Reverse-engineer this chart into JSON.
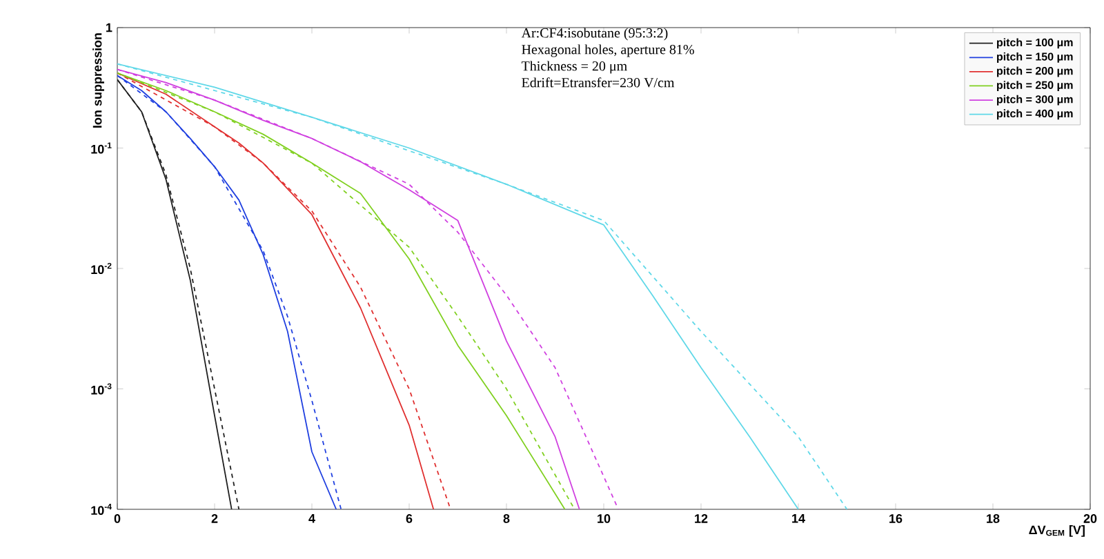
{
  "chart_data": {
    "type": "line",
    "xlabel": "ΔV$_{GEM}$ [V]",
    "ylabel": "Ion suppression",
    "log": "y",
    "xlim": [
      0,
      20
    ],
    "ylim": [
      0.0001,
      1
    ],
    "xticks": [
      0,
      2,
      4,
      6,
      8,
      10,
      12,
      14,
      16,
      18,
      20
    ],
    "yticks": [
      {
        "value": 1,
        "label": "1"
      },
      {
        "value": 0.1,
        "label": "10$^{-1}$"
      },
      {
        "value": 0.01,
        "label": "10$^{-2}$"
      },
      {
        "value": 0.001,
        "label": "10$^{-3}$"
      },
      {
        "value": 0.0001,
        "label": "10$^{-4}$"
      }
    ],
    "legend": "top right",
    "annotations": [
      "Ar:CF4:isobutane (95:3:2)",
      "Hexagonal holes, aperture 81%",
      "Thickness = 20 μm",
      "Edrift=Etransfer=230 V/cm"
    ],
    "series": [
      {
        "name": "pitch = 100 μm",
        "color": "#202020",
        "line_style": "solid",
        "x": [
          0,
          0.5,
          1,
          1.5,
          2,
          2.35
        ],
        "values": [
          0.37,
          0.2,
          0.055,
          0.008,
          0.0006,
          0.0001
        ]
      },
      {
        "name": "pitch = 150 μm",
        "color": "#2040e0",
        "line_style": "solid",
        "x": [
          0,
          0.5,
          1,
          1.5,
          2,
          2.5,
          3,
          3.5,
          4,
          4.5
        ],
        "values": [
          0.4,
          0.3,
          0.2,
          0.12,
          0.07,
          0.037,
          0.013,
          0.003,
          0.0003,
          0.0001
        ]
      },
      {
        "name": "pitch = 200 μm",
        "color": "#e03030",
        "line_style": "solid",
        "x": [
          0,
          1,
          2,
          2.5,
          3,
          4,
          5,
          6,
          6.5
        ],
        "values": [
          0.42,
          0.28,
          0.15,
          0.11,
          0.075,
          0.028,
          0.0047,
          0.0005,
          0.0001
        ]
      },
      {
        "name": "pitch = 250 μm",
        "color": "#80d020",
        "line_style": "solid",
        "x": [
          0,
          1,
          2,
          3,
          4,
          5,
          6,
          7,
          8,
          9.2
        ],
        "values": [
          0.42,
          0.3,
          0.2,
          0.13,
          0.075,
          0.042,
          0.012,
          0.0023,
          0.0006,
          0.0001
        ]
      },
      {
        "name": "pitch = 300 μm",
        "color": "#d040e0",
        "line_style": "solid",
        "x": [
          0,
          1,
          2,
          3,
          4,
          5,
          6,
          7,
          8,
          9,
          9.5
        ],
        "values": [
          0.45,
          0.35,
          0.25,
          0.17,
          0.12,
          0.077,
          0.045,
          0.025,
          0.0025,
          0.0004,
          0.0001
        ]
      },
      {
        "name": "pitch = 400 μm",
        "color": "#60d8e8",
        "line_style": "solid",
        "x": [
          0,
          2,
          4,
          6,
          8,
          10,
          11,
          12,
          13,
          14
        ],
        "values": [
          0.5,
          0.32,
          0.18,
          0.1,
          0.05,
          0.023,
          0.006,
          0.0015,
          0.0004,
          0.0001
        ]
      },
      {
        "color": "#202020",
        "line_style": "dashed",
        "x": [
          0,
          0.5,
          1,
          1.5,
          2,
          2.5
        ],
        "values": [
          0.37,
          0.2,
          0.06,
          0.01,
          0.001,
          0.0001
        ]
      },
      {
        "color": "#2040e0",
        "line_style": "dashed",
        "x": [
          0,
          1,
          2,
          3,
          3.5,
          4,
          4.6
        ],
        "values": [
          0.4,
          0.2,
          0.07,
          0.014,
          0.004,
          0.0008,
          0.0001
        ]
      },
      {
        "color": "#e03030",
        "line_style": "dashed",
        "x": [
          0,
          2,
          3,
          4,
          5,
          6,
          6.85
        ],
        "values": [
          0.42,
          0.15,
          0.075,
          0.03,
          0.007,
          0.001,
          0.0001
        ]
      },
      {
        "color": "#80d020",
        "line_style": "dashed",
        "x": [
          0,
          2,
          4,
          6,
          7,
          8,
          9.4
        ],
        "values": [
          0.42,
          0.2,
          0.075,
          0.015,
          0.004,
          0.001,
          0.0001
        ]
      },
      {
        "color": "#d040e0",
        "line_style": "dashed",
        "x": [
          0,
          2,
          4,
          6,
          7,
          8,
          9,
          10.3
        ],
        "values": [
          0.45,
          0.25,
          0.12,
          0.05,
          0.02,
          0.006,
          0.0015,
          0.0001
        ]
      },
      {
        "color": "#60d8e8",
        "line_style": "dashed",
        "x": [
          0,
          4,
          8,
          10,
          12,
          14,
          15
        ],
        "values": [
          0.5,
          0.18,
          0.05,
          0.025,
          0.003,
          0.0004,
          0.0001
        ]
      }
    ]
  }
}
